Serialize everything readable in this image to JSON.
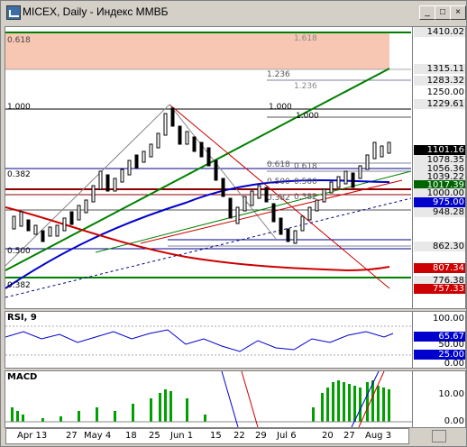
{
  "window": {
    "title": "MICEX, Daily - Индекс ММВБ",
    "controls": {
      "minimize": "_",
      "maximize": "□",
      "close": "×"
    }
  },
  "price_pane": {
    "fib_labels": {
      "top_left": "0.618",
      "top_mid": "1.618",
      "a1236": "1.236",
      "b1236": "1.236",
      "a1000": "1.000",
      "b1000": "1.000",
      "c1000": "1.000",
      "a0618": "0.618",
      "b0618": "0.618",
      "a0500": "0.500",
      "b0500": "0.500",
      "a0382": "0.382",
      "b0382": "0.382",
      "c0382": "0.382",
      "d0500": "0.500",
      "e0382": "0.382"
    },
    "axis_ticks": [
      "1410.02",
      "1315.11",
      "1283.32",
      "1250.00",
      "1229.61",
      "1078.35",
      "1056.36",
      "1039.22",
      "1000.00",
      "975.00",
      "948.28",
      "862.30",
      "776.38",
      "757.33"
    ],
    "highlighted": {
      "current": "1101.16",
      "green": "1017.39",
      "blue": "975.00",
      "red1": "807.34",
      "red2": "757.33"
    }
  },
  "rsi_pane": {
    "title": "RSI, 9",
    "ticks": [
      "100.00",
      "50.00",
      "0.00"
    ],
    "value": "65.67",
    "level": "25.00"
  },
  "macd_pane": {
    "title": "MACD",
    "ticks": [
      "10.00",
      "0.00"
    ]
  },
  "date_axis": {
    "labels": [
      "Apr 13",
      "27",
      "May 4",
      "18",
      "25",
      "Jun 1",
      "15",
      "22",
      "29",
      "Jul 6",
      "20",
      "27",
      "Aug 3"
    ]
  },
  "colors": {
    "up": "#000000",
    "bg_pink": "#f7c7b4",
    "green_line": "#008000",
    "blue_ma": "#0000cc",
    "red_ma": "#cc0000",
    "macd_bars": "#00a000"
  }
}
